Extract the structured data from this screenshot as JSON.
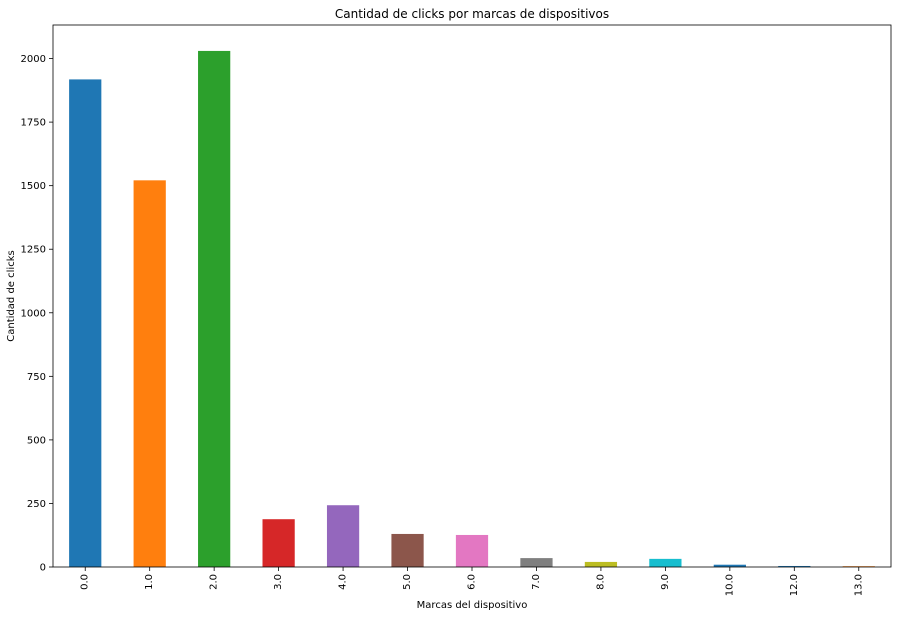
{
  "chart_data": {
    "type": "bar",
    "title": "Cantidad de clicks por marcas de dispositivos",
    "xlabel": "Marcas del dispositivo",
    "ylabel": "Cantidad de clicks",
    "categories": [
      "0.0",
      "1.0",
      "2.0",
      "3.0",
      "4.0",
      "5.0",
      "6.0",
      "7.0",
      "8.0",
      "9.0",
      "10.0",
      "12.0",
      "13.0"
    ],
    "values": [
      1918,
      1521,
      2030,
      188,
      243,
      130,
      126,
      35,
      20,
      32,
      9,
      4,
      3
    ],
    "colors": [
      "#1f77b4",
      "#ff7f0e",
      "#2ca02c",
      "#d62728",
      "#9467bd",
      "#8c564b",
      "#e377c2",
      "#7f7f7f",
      "#bcbd22",
      "#17becf",
      "#1f77b4",
      "#1f77b4",
      "#ff7f0e"
    ],
    "yticks": [
      0,
      250,
      500,
      750,
      1000,
      1250,
      1500,
      1750,
      2000
    ],
    "ylim": [
      0,
      2132
    ],
    "grid": false,
    "legend": false
  }
}
